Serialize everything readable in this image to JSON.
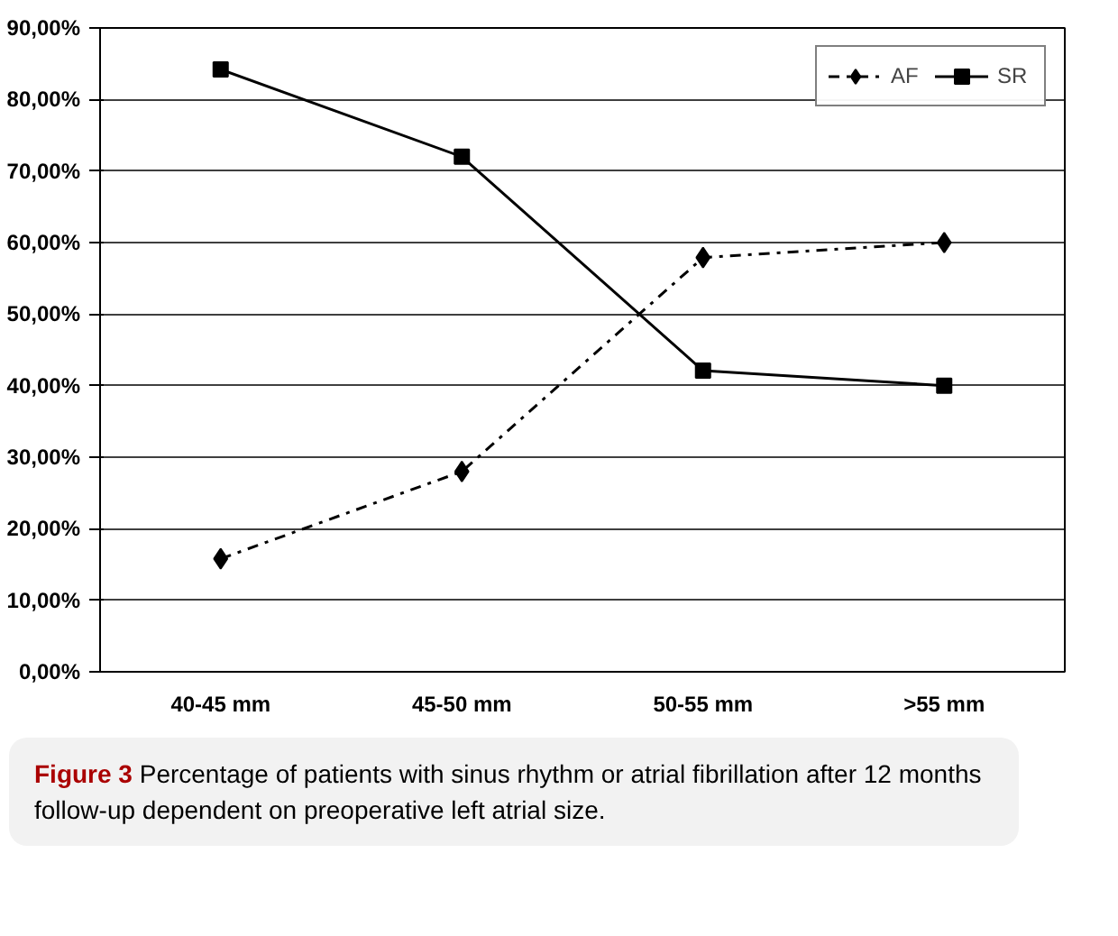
{
  "chart_data": {
    "type": "line",
    "categories": [
      "40-45 mm",
      "45-50 mm",
      "50-55 mm",
      ">55 mm"
    ],
    "series": [
      {
        "name": "AF",
        "color": "#000000",
        "values": [
          15.8,
          28.0,
          57.9,
          60.0
        ],
        "marker": "diamond",
        "line_style": "dashdot"
      },
      {
        "name": "SR",
        "color": "#000000",
        "values": [
          84.2,
          72.0,
          42.1,
          40.0
        ],
        "marker": "square",
        "line_style": "solid"
      }
    ],
    "ylim": [
      0,
      90
    ],
    "yticks": [
      {
        "value": 0,
        "label": "0,00%"
      },
      {
        "value": 10,
        "label": "10,00%"
      },
      {
        "value": 20,
        "label": "20,00%"
      },
      {
        "value": 30,
        "label": "30,00%"
      },
      {
        "value": 40,
        "label": "40,00%"
      },
      {
        "value": 50,
        "label": "50,00%"
      },
      {
        "value": 60,
        "label": "60,00%"
      },
      {
        "value": 70,
        "label": "70,00%"
      },
      {
        "value": 80,
        "label": "80,00%"
      },
      {
        "value": 90,
        "label": "90,00%"
      }
    ],
    "grid": "y",
    "legend": "top right",
    "annotations": [
      "Figure 3 Percentage of patients with sinus rhythm or atrial fibrillation after 12 months follow-up dependent on preoperative left atrial size."
    ]
  }
}
